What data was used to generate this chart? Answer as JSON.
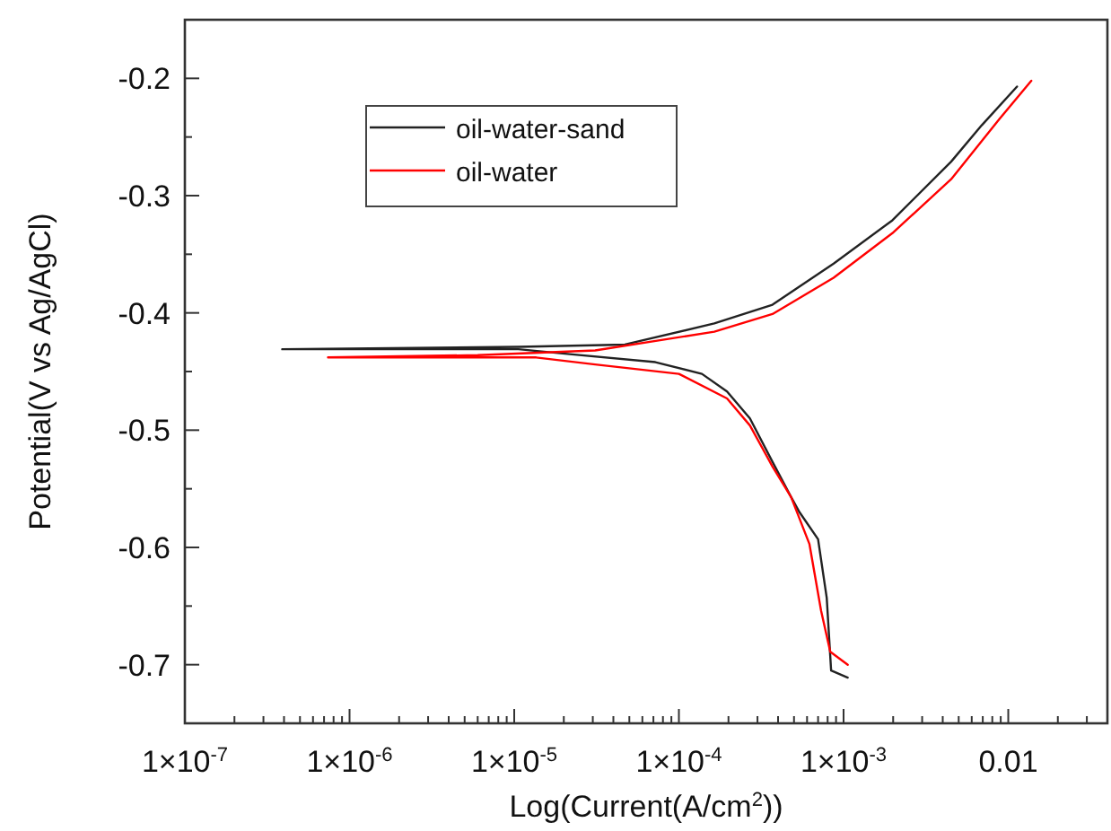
{
  "chart_data": {
    "type": "line",
    "xlabel": "Log(Current(A/cm$^{2}$))",
    "ylabel": "Potential(V vs Ag/AgCl)",
    "log": "x",
    "xlim": [
      1e-07,
      0.04
    ],
    "ylim": [
      -0.75,
      -0.15
    ],
    "xticks": [
      {
        "value": 1e-07,
        "label": "1×10$^{-7}$"
      },
      {
        "value": 2e-07,
        "label": null
      },
      {
        "value": 3e-07,
        "label": null
      },
      {
        "value": 4e-07,
        "label": null
      },
      {
        "value": 5e-07,
        "label": null
      },
      {
        "value": 6e-07,
        "label": null
      },
      {
        "value": 7e-07,
        "label": null
      },
      {
        "value": 8e-07,
        "label": null
      },
      {
        "value": 9e-07,
        "label": null
      },
      {
        "value": 1e-06,
        "label": "1×10$^{-6}$"
      },
      {
        "value": 2e-06,
        "label": null
      },
      {
        "value": 3e-06,
        "label": null
      },
      {
        "value": 4e-06,
        "label": null
      },
      {
        "value": 5e-06,
        "label": null
      },
      {
        "value": 6e-06,
        "label": null
      },
      {
        "value": 7e-06,
        "label": null
      },
      {
        "value": 8e-06,
        "label": null
      },
      {
        "value": 9e-06,
        "label": null
      },
      {
        "value": 1e-05,
        "label": "1×10$^{-5}$"
      },
      {
        "value": 2e-05,
        "label": null
      },
      {
        "value": 3e-05,
        "label": null
      },
      {
        "value": 4e-05,
        "label": null
      },
      {
        "value": 5e-05,
        "label": null
      },
      {
        "value": 6e-05,
        "label": null
      },
      {
        "value": 7e-05,
        "label": null
      },
      {
        "value": 8e-05,
        "label": null
      },
      {
        "value": 9e-05,
        "label": null
      },
      {
        "value": 0.0001,
        "label": "1×10$^{-4}$"
      },
      {
        "value": 0.0002,
        "label": null
      },
      {
        "value": 0.0003,
        "label": null
      },
      {
        "value": 0.0004,
        "label": null
      },
      {
        "value": 0.0005,
        "label": null
      },
      {
        "value": 0.0006,
        "label": null
      },
      {
        "value": 0.0007,
        "label": null
      },
      {
        "value": 0.0008,
        "label": null
      },
      {
        "value": 0.0009,
        "label": null
      },
      {
        "value": 0.001,
        "label": "1×10$^{-3}$"
      },
      {
        "value": 0.002,
        "label": null
      },
      {
        "value": 0.003,
        "label": null
      },
      {
        "value": 0.004,
        "label": null
      },
      {
        "value": 0.005,
        "label": null
      },
      {
        "value": 0.006,
        "label": null
      },
      {
        "value": 0.007,
        "label": null
      },
      {
        "value": 0.008,
        "label": null
      },
      {
        "value": 0.009,
        "label": null
      },
      {
        "value": 0.01,
        "label": "0.01"
      },
      {
        "value": 0.02,
        "label": null
      },
      {
        "value": 0.03,
        "label": null
      }
    ],
    "yticks": [
      {
        "value": -0.7,
        "label": "-0.7"
      },
      {
        "value": -0.65,
        "label": null
      },
      {
        "value": -0.6,
        "label": "-0.6"
      },
      {
        "value": -0.55,
        "label": null
      },
      {
        "value": -0.5,
        "label": "-0.5"
      },
      {
        "value": -0.45,
        "label": null
      },
      {
        "value": -0.4,
        "label": "-0.4"
      },
      {
        "value": -0.35,
        "label": null
      },
      {
        "value": -0.3,
        "label": "-0.3"
      },
      {
        "value": -0.25,
        "label": null
      },
      {
        "value": -0.2,
        "label": "-0.2"
      }
    ],
    "grid": false,
    "legend": "top left",
    "line_style": "solid",
    "marker": "none",
    "series": [
      {
        "name": "oil-water-sand",
        "color": "#222222",
        "x": [
          0.00106,
          0.00084,
          0.00079,
          0.0007,
          0.00054,
          0.00048,
          0.00037,
          0.00027,
          0.000196,
          0.000138,
          7.2e-05,
          2.1e-05,
          1.06e-05,
          3.9e-07,
          1.06e-05,
          4.7e-05,
          0.000164,
          0.00037,
          0.00087,
          0.00198,
          0.0045,
          0.0069,
          0.0113
        ],
        "values": [
          -0.711,
          -0.705,
          -0.643,
          -0.593,
          -0.57,
          -0.557,
          -0.527,
          -0.49,
          -0.467,
          -0.452,
          -0.442,
          -0.435,
          -0.431,
          -0.431,
          -0.429,
          -0.427,
          -0.409,
          -0.393,
          -0.358,
          -0.321,
          -0.271,
          -0.24,
          -0.207
        ]
      },
      {
        "name": "oil-water",
        "color": "#ff0000",
        "x": [
          0.00106,
          0.00083,
          0.00073,
          0.00062,
          0.00048,
          0.00037,
          0.00027,
          0.000196,
          0.0001,
          3.1e-05,
          1.36e-05,
          7.4e-07,
          6e-06,
          3.1e-05,
          0.000164,
          0.00037,
          0.00087,
          0.00198,
          0.0045,
          0.0088,
          0.0138
        ],
        "values": [
          -0.7,
          -0.689,
          -0.654,
          -0.597,
          -0.557,
          -0.531,
          -0.496,
          -0.473,
          -0.452,
          -0.444,
          -0.438,
          -0.438,
          -0.436,
          -0.432,
          -0.416,
          -0.401,
          -0.37,
          -0.332,
          -0.286,
          -0.235,
          -0.202
        ]
      }
    ]
  }
}
